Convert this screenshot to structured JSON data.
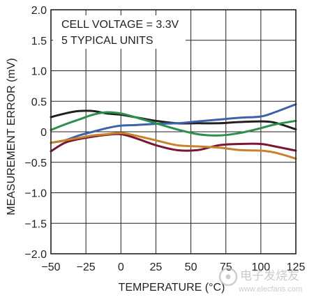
{
  "chart_data": {
    "type": "line",
    "title": "",
    "xlabel": "TEMPERATURE (°C)",
    "ylabel": "MEASUREMENT ERROR (mV)",
    "annotations": [
      "CELL VOLTAGE = 3.3V",
      "5 TYPICAL UNITS"
    ],
    "xlim": [
      -50,
      125
    ],
    "ylim": [
      -2.0,
      2.0
    ],
    "x_ticks": [
      -50,
      -25,
      0,
      25,
      50,
      75,
      100,
      125
    ],
    "x_tick_labels": [
      "−50",
      "−25",
      "0",
      "25",
      "50",
      "75",
      "100",
      "125"
    ],
    "y_ticks": [
      -2.0,
      -1.5,
      -1.0,
      -0.5,
      0,
      0.5,
      1.0,
      1.5,
      2.0
    ],
    "y_tick_labels": [
      "−2.0",
      "−1.5",
      "−1.0",
      "−0.5",
      "0",
      "0.5",
      "1.0",
      "1.5",
      "2.0"
    ],
    "grid": true,
    "series": [
      {
        "color": "#231f20",
        "x": [
          -50,
          -40,
          -30,
          -20,
          -10,
          0,
          10,
          25,
          40,
          55,
          70,
          85,
          100,
          110,
          125
        ],
        "y": [
          0.24,
          0.3,
          0.34,
          0.34,
          0.3,
          0.28,
          0.24,
          0.18,
          0.14,
          0.14,
          0.14,
          0.16,
          0.17,
          0.15,
          0.04
        ]
      },
      {
        "color": "#3b62ab",
        "x": [
          -50,
          -40,
          -30,
          -20,
          -10,
          0,
          10,
          25,
          40,
          55,
          70,
          85,
          100,
          110,
          125
        ],
        "y": [
          -0.18,
          -0.14,
          -0.06,
          0.0,
          0.06,
          0.1,
          0.11,
          0.13,
          0.14,
          0.17,
          0.2,
          0.23,
          0.25,
          0.32,
          0.45
        ]
      },
      {
        "color": "#2b8f4e",
        "x": [
          -50,
          -40,
          -30,
          -20,
          -10,
          0,
          10,
          25,
          40,
          55,
          70,
          85,
          100,
          110,
          125
        ],
        "y": [
          0.03,
          0.12,
          0.2,
          0.28,
          0.32,
          0.3,
          0.24,
          0.14,
          0.04,
          -0.04,
          -0.06,
          -0.02,
          0.06,
          0.12,
          0.18
        ]
      },
      {
        "color": "#7b1631",
        "x": [
          -50,
          -40,
          -30,
          -20,
          -10,
          0,
          10,
          25,
          40,
          55,
          70,
          85,
          100,
          110,
          125
        ],
        "y": [
          -0.32,
          -0.18,
          -0.12,
          -0.08,
          -0.05,
          -0.04,
          -0.1,
          -0.22,
          -0.3,
          -0.3,
          -0.22,
          -0.2,
          -0.2,
          -0.24,
          -0.31
        ]
      },
      {
        "color": "#c8812d",
        "x": [
          -50,
          -40,
          -30,
          -20,
          -10,
          0,
          10,
          25,
          40,
          55,
          70,
          85,
          100,
          110,
          125
        ],
        "y": [
          -0.18,
          -0.14,
          -0.1,
          -0.06,
          -0.04,
          -0.02,
          -0.06,
          -0.14,
          -0.22,
          -0.24,
          -0.26,
          -0.3,
          -0.31,
          -0.34,
          -0.44
        ]
      }
    ]
  },
  "watermark": {
    "text": "电子发烧友",
    "subtext": "www.elecfans.com"
  }
}
